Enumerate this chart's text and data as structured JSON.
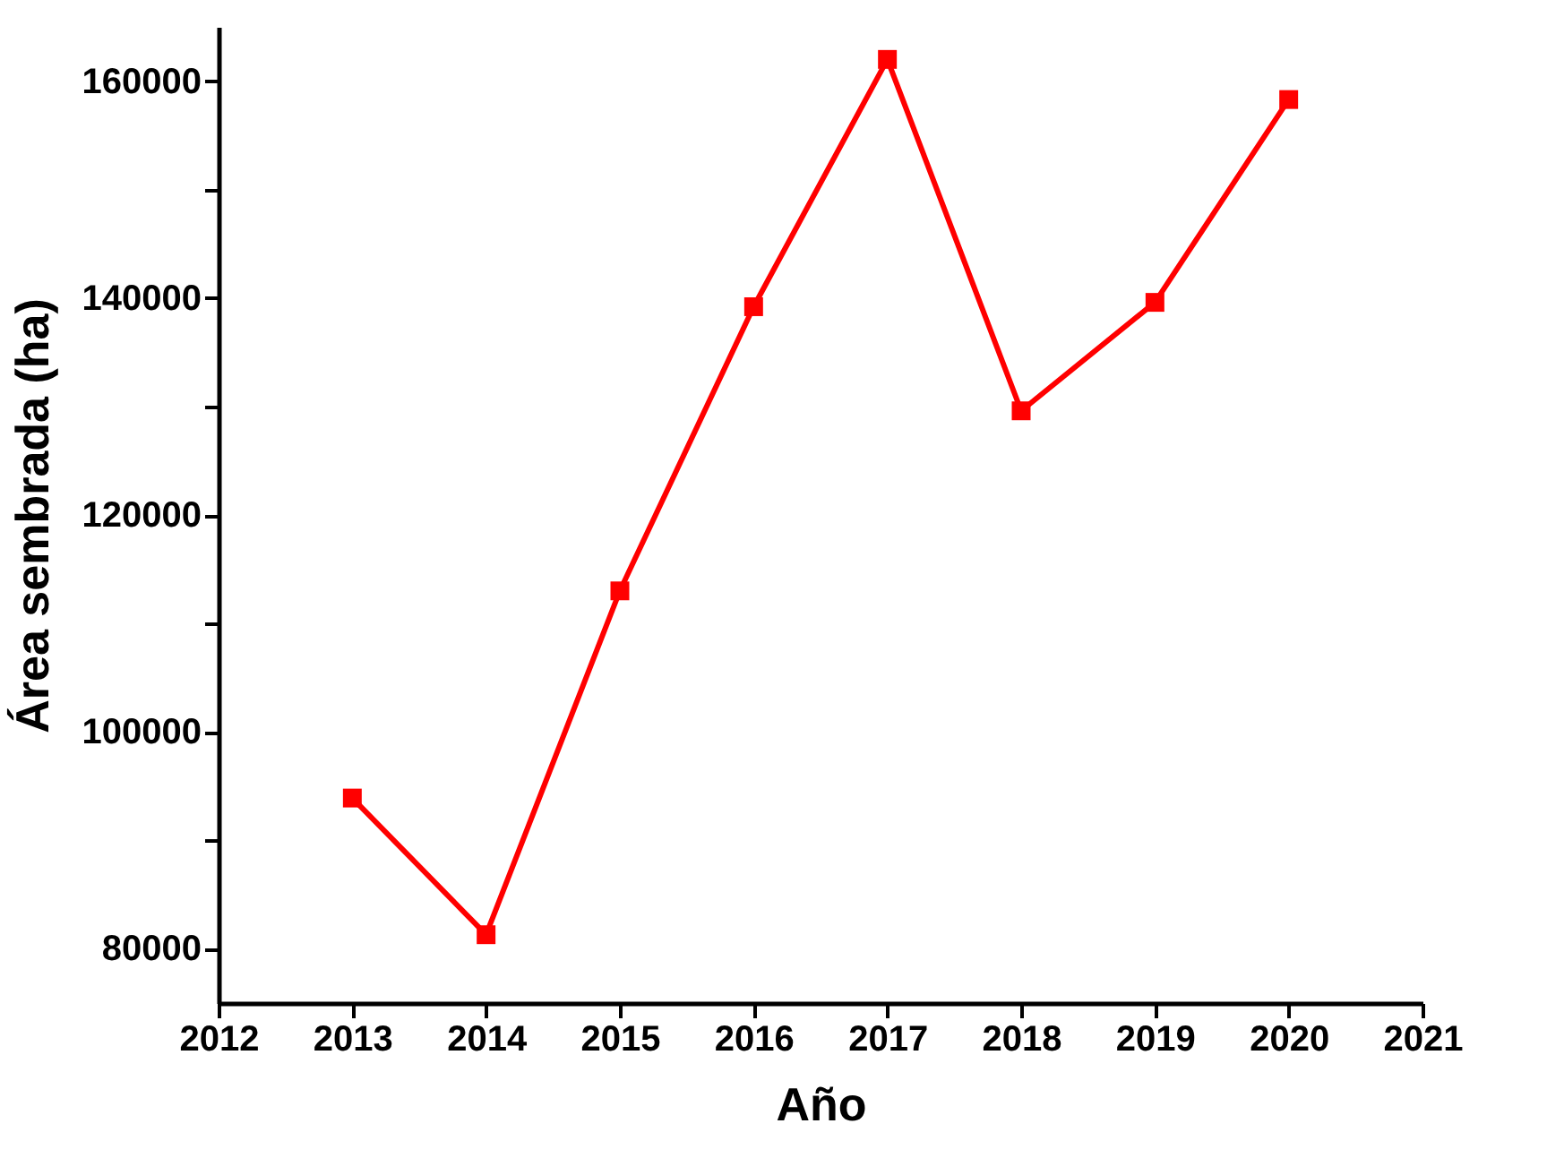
{
  "chart_data": {
    "type": "line",
    "xlabel": "Año",
    "ylabel": "Área sembrada (ha)",
    "x": [
      2013,
      2014,
      2015,
      2016,
      2017,
      2018,
      2019,
      2020
    ],
    "series": [
      {
        "color": "#ff0000",
        "values": [
          93900,
          81300,
          113000,
          139200,
          162000,
          129600,
          139600,
          158300
        ]
      }
    ],
    "xlim": [
      2012,
      2021
    ],
    "xticks": [
      2012,
      2013,
      2014,
      2015,
      2016,
      2017,
      2018,
      2019,
      2020,
      2021
    ],
    "ylim": [
      75000,
      165000
    ],
    "yticks": [
      80000,
      {
        "value": 90000,
        "label": null
      },
      100000,
      {
        "value": 110000,
        "label": null
      },
      120000,
      {
        "value": 130000,
        "label": null
      },
      140000,
      {
        "value": 150000,
        "label": null
      },
      160000
    ],
    "marker": "square",
    "line_style": "solid",
    "grid": false
  }
}
